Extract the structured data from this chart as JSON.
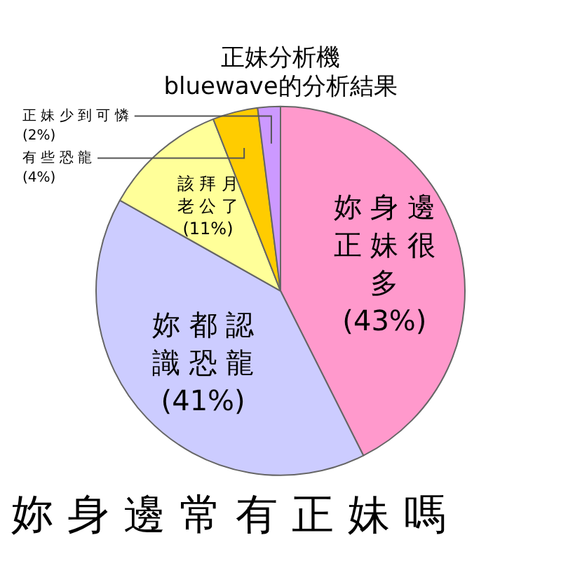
{
  "chart_data": {
    "type": "pie",
    "title": "正妹分析機",
    "subtitle": "bluewave的分析結果",
    "categories": [
      "妳身邊正妹很多",
      "妳都認識恐龍",
      "該拜月老公了",
      "有些恐龍",
      "正妹少到可憐"
    ],
    "values": [
      43,
      41,
      11,
      4,
      2
    ],
    "value_labels": [
      "(43%)",
      "(41%)",
      "(11%)",
      "(4%)",
      "(2%)"
    ],
    "colors": [
      "#ff99cc",
      "#ccccff",
      "#ffff99",
      "#ffcc00",
      "#cc99ff"
    ],
    "legend": false,
    "annotations": [
      "妳身邊常有正妹嗎"
    ]
  }
}
